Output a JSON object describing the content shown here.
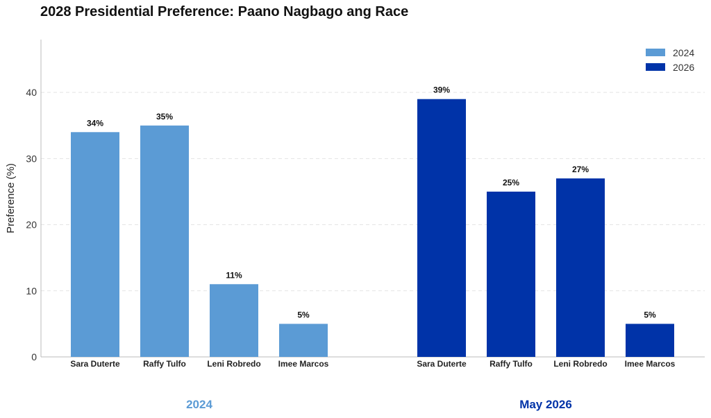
{
  "chart_data": {
    "type": "bar",
    "title": "2028 Presidential Preference: Paano Nagbago ang Race",
    "ylabel": "Preference (%)",
    "xlabel": "",
    "ylim": [
      0,
      48
    ],
    "yticks": [
      0,
      10,
      20,
      30,
      40
    ],
    "grid": true,
    "legend_position": "top-right",
    "groups": [
      {
        "label": "2024",
        "series": "2024",
        "color": "#5b9bd5",
        "categories": [
          "Sara Duterte",
          "Raffy Tulfo",
          "Leni Robredo",
          "Imee Marcos"
        ],
        "values": [
          34,
          35,
          11,
          5
        ],
        "value_labels": [
          "34%",
          "35%",
          "11%",
          "5%"
        ]
      },
      {
        "label": "May 2026",
        "series": "2026",
        "color": "#0033a8",
        "categories": [
          "Sara Duterte",
          "Raffy Tulfo",
          "Leni Robredo",
          "Imee Marcos"
        ],
        "values": [
          39,
          25,
          27,
          5
        ],
        "value_labels": [
          "39%",
          "25%",
          "27%",
          "5%"
        ]
      }
    ],
    "legend": [
      {
        "name": "2024",
        "color": "#5b9bd5"
      },
      {
        "name": "2026",
        "color": "#0033a8"
      }
    ]
  }
}
